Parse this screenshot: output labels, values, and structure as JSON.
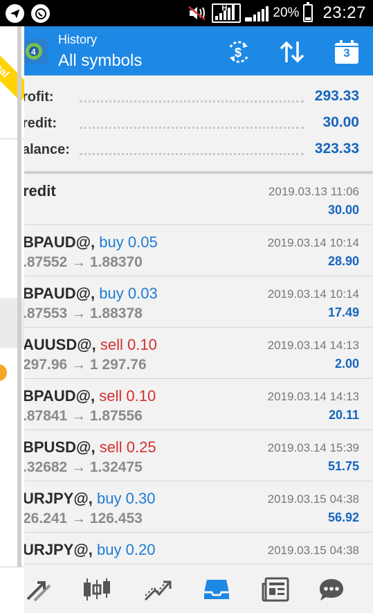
{
  "status_bar": {
    "battery_percent": "20%",
    "time": "23:27",
    "network_type": "H"
  },
  "drawer": {
    "account_badge": "Real"
  },
  "header": {
    "subtitle": "History",
    "title": "All symbols",
    "calendar_day": "3"
  },
  "summary": [
    {
      "label": "rofit:",
      "value": "293.33"
    },
    {
      "label": "redit:",
      "value": "30.00"
    },
    {
      "label": "alance:",
      "value": "323.33"
    }
  ],
  "history": [
    {
      "symbol": "redit",
      "side": "",
      "side_type": "",
      "prices": "",
      "time": "2019.03.13 11:06",
      "profit": "30.00"
    },
    {
      "symbol": "BPAUD@, ",
      "side": "buy 0.05",
      "side_type": "buy",
      "prices": ".87552 → 1.88370",
      "time": "2019.03.14 10:14",
      "profit": "28.90"
    },
    {
      "symbol": "BPAUD@, ",
      "side": "buy 0.03",
      "side_type": "buy",
      "prices": ".87553 → 1.88378",
      "time": "2019.03.14 10:14",
      "profit": "17.49"
    },
    {
      "symbol": "AUUSD@, ",
      "side": "sell 0.10",
      "side_type": "sell",
      "prices": " 297.96 → 1 297.76",
      "time": "2019.03.14 14:13",
      "profit": "2.00"
    },
    {
      "symbol": "BPAUD@, ",
      "side": "sell 0.10",
      "side_type": "sell",
      "prices": ".87841 → 1.87556",
      "time": "2019.03.14 14:13",
      "profit": "20.11"
    },
    {
      "symbol": "BPUSD@, ",
      "side": "sell 0.25",
      "side_type": "sell",
      "prices": ".32682 → 1.32475",
      "time": "2019.03.14 15:39",
      "profit": "51.75"
    },
    {
      "symbol": "URJPY@, ",
      "side": "buy 0.30",
      "side_type": "buy",
      "prices": "26.241 → 126.453",
      "time": "2019.03.15 04:38",
      "profit": "56.92"
    },
    {
      "symbol": "URJPY@, ",
      "side": "buy 0.20",
      "side_type": "buy",
      "prices": "",
      "time": "2019.03.15 04:38",
      "profit": ""
    }
  ],
  "colors": {
    "accent": "#1e88e5",
    "value_blue": "#1565c0",
    "buy": "#1e7bd6",
    "sell": "#d32f2f"
  },
  "icons": {
    "telegram": "telegram-icon",
    "whatsapp": "whatsapp-icon",
    "mute": "vibrate-mute-icon",
    "currency": "currency-exchange-icon",
    "sort": "sort-icon",
    "calendar": "calendar-icon",
    "nav": [
      "quotes-icon",
      "chart-icon",
      "trade-icon",
      "history-icon",
      "news-icon",
      "chat-icon"
    ]
  }
}
